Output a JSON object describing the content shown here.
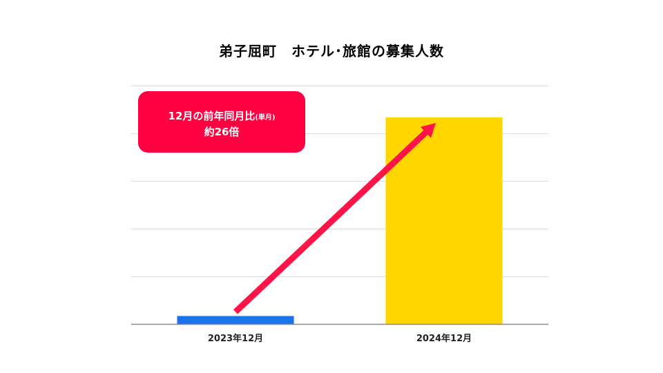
{
  "chart_data": {
    "type": "bar",
    "title": "弟子屈町　ホテル･旅館の募集人数",
    "categories": [
      "2023年12月",
      "2024年12月"
    ],
    "values": [
      1,
      26
    ],
    "ylim": [
      0,
      30
    ],
    "grid": true,
    "bar_colors": [
      "#1a73e8",
      "#ffd600"
    ],
    "annotation": {
      "main": "12月の前年同月比",
      "small": "(単月)",
      "value": "約26倍",
      "color": "#ff0040"
    },
    "arrow_color": "#ff1448"
  }
}
